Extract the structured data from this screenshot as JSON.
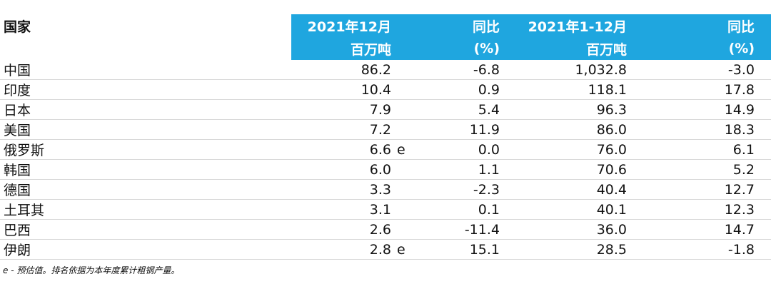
{
  "header": {
    "country": "国家",
    "columns": [
      {
        "line1": "2021年12月",
        "line2": "百万吨"
      },
      {
        "line1": "同比",
        "line2": "(%)"
      },
      {
        "line1": "2021年1-12月",
        "line2": "百万吨"
      },
      {
        "line1": "同比",
        "line2": "(%)"
      }
    ]
  },
  "table": {
    "rows": [
      {
        "country": "中国",
        "cells": [
          "86.2",
          "-6.8",
          "1,032.8",
          "-3.0"
        ]
      },
      {
        "country": "印度",
        "cells": [
          "10.4",
          "0.9",
          "118.1",
          "17.8"
        ]
      },
      {
        "country": "日本",
        "cells": [
          "7.9",
          "5.4",
          "96.3",
          "14.9"
        ]
      },
      {
        "country": "美国",
        "cells": [
          "7.2",
          "11.9",
          "86.0",
          "18.3"
        ]
      },
      {
        "country": "俄罗斯",
        "cells": [
          "6.6",
          "0.0",
          "76.0",
          "6.1"
        ],
        "note": "e"
      },
      {
        "country": "韩国",
        "cells": [
          "6.0",
          "1.1",
          "70.6",
          "5.2"
        ]
      },
      {
        "country": "德国",
        "cells": [
          "3.3",
          "-2.3",
          "40.4",
          "12.7"
        ]
      },
      {
        "country": "土耳其",
        "cells": [
          "3.1",
          "0.1",
          "40.1",
          "12.3"
        ]
      },
      {
        "country": "巴西",
        "cells": [
          "2.6",
          "-11.4",
          "36.0",
          "14.7"
        ]
      },
      {
        "country": "伊朗",
        "cells": [
          "2.8",
          "15.1",
          "28.5",
          "-1.8"
        ],
        "note": "e"
      }
    ]
  },
  "footnote": "e - 预估值。排名依据为本年度累计粗钢产量。"
}
